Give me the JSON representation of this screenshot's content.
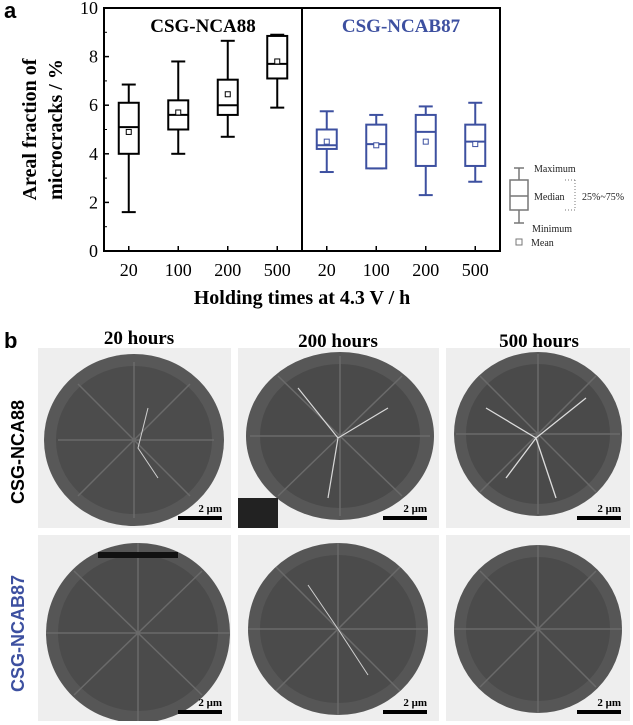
{
  "panel_a_letter": "a",
  "panel_b_letter": "b",
  "chart_data": {
    "type": "box",
    "ylabel": "Areal fraction of\nmicrocracks / %",
    "xlabel": "Holding times at 4.3 V / h",
    "ylim": [
      0,
      10
    ],
    "yticks": [
      "0",
      "2",
      "4",
      "6",
      "8",
      "10"
    ],
    "categories": [
      "20",
      "100",
      "200",
      "500"
    ],
    "panels": [
      {
        "title": "CSG-NCA88",
        "color": "#000000",
        "boxes": [
          {
            "category": "20",
            "min": 1.6,
            "q1": 4.0,
            "median": 5.1,
            "q3": 6.1,
            "max": 6.85,
            "mean": 4.9
          },
          {
            "category": "100",
            "min": 4.0,
            "q1": 5.0,
            "median": 5.6,
            "q3": 6.2,
            "max": 7.8,
            "mean": 5.7
          },
          {
            "category": "200",
            "min": 4.7,
            "q1": 5.6,
            "median": 6.0,
            "q3": 7.05,
            "max": 8.65,
            "mean": 6.45
          },
          {
            "category": "500",
            "min": 5.9,
            "q1": 7.1,
            "median": 7.7,
            "q3": 8.85,
            "max": 8.9,
            "mean": 7.8
          }
        ]
      },
      {
        "title": "CSG-NCAB87",
        "color": "#3d50a0",
        "boxes": [
          {
            "category": "20",
            "min": 3.25,
            "q1": 4.2,
            "median": 4.35,
            "q3": 5.0,
            "max": 5.75,
            "mean": 4.5
          },
          {
            "category": "100",
            "min": 3.4,
            "q1": 3.4,
            "median": 4.4,
            "q3": 5.2,
            "max": 5.6,
            "mean": 4.35
          },
          {
            "category": "200",
            "min": 2.3,
            "q1": 3.5,
            "median": 4.9,
            "q3": 5.6,
            "max": 5.95,
            "mean": 4.5
          },
          {
            "category": "500",
            "min": 2.85,
            "q1": 3.5,
            "median": 4.5,
            "q3": 5.2,
            "max": 6.1,
            "mean": 4.4
          }
        ]
      }
    ],
    "legend": {
      "maximum": "Maximum",
      "median": "Median",
      "minimum": "Minimum",
      "mean": "Mean",
      "range": "25%~75%"
    }
  },
  "micrographs": {
    "columns": [
      "20 hours",
      "200 hours",
      "500 hours"
    ],
    "rows": [
      {
        "label": "CSG-NCA88",
        "color": "#000000"
      },
      {
        "label": "CSG-NCAB87",
        "color": "#3d50a0"
      }
    ],
    "scale_label": "2 μm"
  }
}
